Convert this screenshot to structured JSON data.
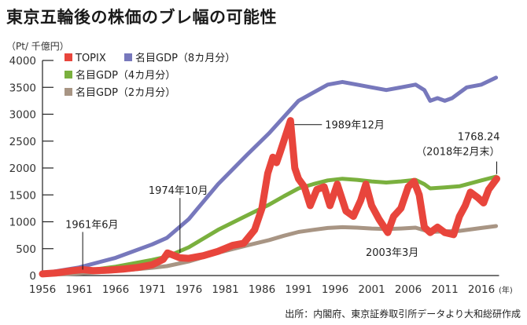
{
  "title": "東京五輪後の株価のブレ幅の可能性",
  "unit_label": "（Pt/ 千億円）",
  "source": "出所：内閣府、東京証券取引所データより大和総研作成",
  "chart_data": {
    "type": "line",
    "title": "東京五輪後の株価のブレ幅の可能性",
    "ylabel": "（Pt/ 千億円）",
    "xlabel": "（年）",
    "xlim": [
      1956,
      2018.2
    ],
    "ylim": [
      0,
      4000
    ],
    "x_ticks": [
      "1956",
      "1961",
      "1966",
      "1971",
      "1976",
      "1981",
      "1986",
      "1991",
      "1996",
      "2001",
      "2006",
      "2011",
      "2016"
    ],
    "x_unit": "(年)",
    "y_ticks": [
      0,
      500,
      1000,
      1500,
      2000,
      2500,
      3000,
      3500,
      4000
    ],
    "grid": false,
    "legend": "top-left",
    "series": [
      {
        "name": "TOPIX",
        "color": "#e8453c",
        "x": [
          1956,
          1958,
          1960,
          1961.5,
          1963,
          1965,
          1967,
          1969,
          1971,
          1972.5,
          1973.1,
          1974.8,
          1976,
          1978,
          1980,
          1982,
          1983.5,
          1985,
          1986,
          1986.8,
          1987.5,
          1988,
          1988.5,
          1989.9,
          1990.5,
          1991,
          1991.8,
          1992.6,
          1993.5,
          1994.5,
          1995.3,
          1996.3,
          1997.5,
          1998.5,
          1999.5,
          2000.2,
          2001,
          2002,
          2003.2,
          2004,
          2005,
          2006,
          2006.8,
          2007.5,
          2008.2,
          2009,
          2010,
          2011,
          2012.2,
          2013,
          2013.8,
          2014.5,
          2015.5,
          2016.3,
          2017,
          2018.1
        ],
        "values": [
          30,
          50,
          90,
          110,
          90,
          100,
          120,
          150,
          200,
          300,
          420,
          330,
          320,
          370,
          450,
          560,
          600,
          850,
          1250,
          1900,
          2200,
          2100,
          2300,
          2880,
          2000,
          1800,
          1650,
          1300,
          1600,
          1650,
          1300,
          1700,
          1200,
          1100,
          1400,
          1700,
          1300,
          1050,
          800,
          1100,
          1250,
          1650,
          1750,
          1500,
          900,
          800,
          900,
          800,
          760,
          1100,
          1300,
          1550,
          1450,
          1350,
          1600,
          1800
        ]
      },
      {
        "name": "名目GDP（8カ月分）",
        "color": "#7778bc",
        "x": [
          1956,
          1961,
          1966,
          1971,
          1973,
          1976,
          1980,
          1984,
          1987,
          1989,
          1991,
          1993,
          1995,
          1997,
          1999,
          2001,
          2003,
          2005,
          2007,
          2008.2,
          2009,
          2010,
          2011,
          2012,
          2013,
          2014,
          2016,
          2018
        ],
        "values": [
          40,
          150,
          330,
          580,
          700,
          1050,
          1700,
          2250,
          2650,
          2950,
          3250,
          3400,
          3550,
          3600,
          3550,
          3500,
          3450,
          3500,
          3550,
          3450,
          3250,
          3300,
          3250,
          3300,
          3400,
          3500,
          3550,
          3680
        ]
      },
      {
        "name": "名目GDP（4カ月分）",
        "color": "#7ab03e",
        "x": [
          1956,
          1961,
          1966,
          1971,
          1973,
          1976,
          1980,
          1984,
          1987,
          1989,
          1991,
          1993,
          1995,
          1997,
          1999,
          2001,
          2003,
          2005,
          2007,
          2008.2,
          2009,
          2011,
          2013,
          2016,
          2018
        ],
        "values": [
          20,
          75,
          165,
          290,
          350,
          525,
          850,
          1120,
          1320,
          1475,
          1620,
          1700,
          1770,
          1800,
          1780,
          1750,
          1730,
          1750,
          1780,
          1700,
          1620,
          1640,
          1660,
          1770,
          1840
        ]
      },
      {
        "name": "名目GDP（2カ月分）",
        "color": "#a89584",
        "x": [
          1956,
          1961,
          1966,
          1971,
          1973,
          1976,
          1980,
          1984,
          1987,
          1989,
          1991,
          1993,
          1995,
          1997,
          1999,
          2001,
          2003,
          2005,
          2007,
          2009,
          2011,
          2013,
          2016,
          2018
        ],
        "values": [
          10,
          38,
          83,
          145,
          175,
          262,
          425,
          560,
          660,
          740,
          810,
          850,
          885,
          900,
          890,
          875,
          865,
          875,
          890,
          810,
          820,
          830,
          885,
          920
        ]
      }
    ],
    "annotations": [
      {
        "text": "1961年6月",
        "x": 1961.5,
        "y": 110
      },
      {
        "text": "1974年10月",
        "x": 1974.8,
        "y": 420
      },
      {
        "text": "1989年12月",
        "x": 1989.9,
        "y": 2880
      },
      {
        "text": "2003年3月",
        "x": 2003.2,
        "y": 800
      },
      {
        "text": "1768.24",
        "x": 2018.1,
        "y": 1800
      },
      {
        "text": "（2018年2月末）",
        "x": 2018.1,
        "y": 1800
      }
    ]
  }
}
